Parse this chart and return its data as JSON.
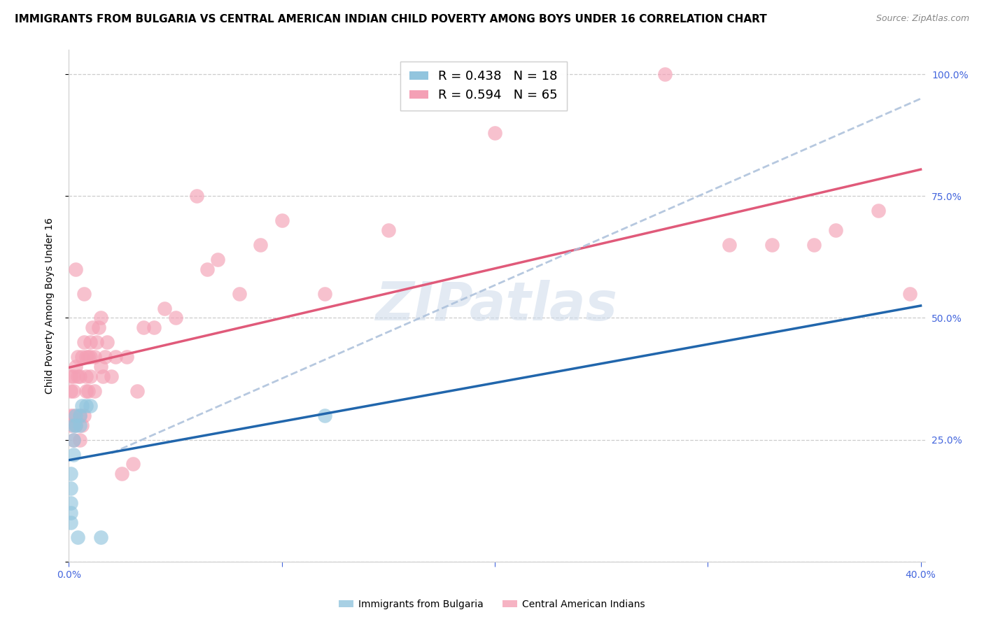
{
  "title": "IMMIGRANTS FROM BULGARIA VS CENTRAL AMERICAN INDIAN CHILD POVERTY AMONG BOYS UNDER 16 CORRELATION CHART",
  "source": "Source: ZipAtlas.com",
  "ylabel": "Child Poverty Among Boys Under 16",
  "watermark": "ZIPatlas",
  "bulgaria_R": 0.438,
  "bulgaria_N": 18,
  "central_american_R": 0.594,
  "central_american_N": 65,
  "bulgaria_color": "#92c5de",
  "central_american_color": "#f4a0b5",
  "bulgaria_line_color": "#2166ac",
  "central_american_line_color": "#e05a7a",
  "dashed_line_color": "#aabfda",
  "bulgaria_x": [
    0.001,
    0.001,
    0.001,
    0.001,
    0.001,
    0.002,
    0.002,
    0.002,
    0.003,
    0.003,
    0.004,
    0.005,
    0.005,
    0.006,
    0.008,
    0.01,
    0.015,
    0.12
  ],
  "bulgaria_y": [
    0.1,
    0.08,
    0.12,
    0.15,
    0.18,
    0.28,
    0.22,
    0.25,
    0.28,
    0.3,
    0.05,
    0.3,
    0.28,
    0.32,
    0.32,
    0.32,
    0.05,
    0.3
  ],
  "central_american_x": [
    0.001,
    0.001,
    0.001,
    0.001,
    0.002,
    0.002,
    0.002,
    0.002,
    0.003,
    0.003,
    0.003,
    0.004,
    0.004,
    0.005,
    0.005,
    0.005,
    0.006,
    0.006,
    0.007,
    0.007,
    0.007,
    0.008,
    0.008,
    0.008,
    0.009,
    0.009,
    0.01,
    0.01,
    0.01,
    0.011,
    0.012,
    0.012,
    0.013,
    0.014,
    0.015,
    0.015,
    0.016,
    0.017,
    0.018,
    0.02,
    0.022,
    0.025,
    0.027,
    0.03,
    0.032,
    0.035,
    0.04,
    0.045,
    0.05,
    0.06,
    0.065,
    0.07,
    0.08,
    0.09,
    0.1,
    0.12,
    0.15,
    0.2,
    0.28,
    0.31,
    0.33,
    0.35,
    0.36,
    0.38,
    0.395
  ],
  "central_american_y": [
    0.3,
    0.28,
    0.35,
    0.38,
    0.25,
    0.3,
    0.35,
    0.38,
    0.28,
    0.4,
    0.6,
    0.38,
    0.42,
    0.25,
    0.3,
    0.38,
    0.28,
    0.42,
    0.3,
    0.45,
    0.55,
    0.35,
    0.38,
    0.42,
    0.35,
    0.42,
    0.45,
    0.38,
    0.42,
    0.48,
    0.35,
    0.42,
    0.45,
    0.48,
    0.4,
    0.5,
    0.38,
    0.42,
    0.45,
    0.38,
    0.42,
    0.18,
    0.42,
    0.2,
    0.35,
    0.48,
    0.48,
    0.52,
    0.5,
    0.75,
    0.6,
    0.62,
    0.55,
    0.65,
    0.7,
    0.55,
    0.68,
    0.88,
    1.0,
    0.65,
    0.65,
    0.65,
    0.68,
    0.72,
    0.55
  ],
  "xlim": [
    0.0,
    0.4
  ],
  "ylim": [
    0.0,
    1.05
  ],
  "x_ticks": [
    0.0,
    0.1,
    0.2,
    0.3,
    0.4
  ],
  "x_tick_labels": [
    "0.0%",
    "",
    "",
    "",
    "40.0%"
  ],
  "y_ticks": [
    0.0,
    0.25,
    0.5,
    0.75,
    1.0
  ],
  "y_tick_labels": [
    "",
    "25.0%",
    "50.0%",
    "75.0%",
    "100.0%"
  ],
  "bg_color": "#ffffff",
  "grid_color": "#cccccc",
  "tick_color": "#4466dd",
  "title_fontsize": 11,
  "label_fontsize": 10,
  "tick_fontsize": 10,
  "legend_fontsize": 13
}
